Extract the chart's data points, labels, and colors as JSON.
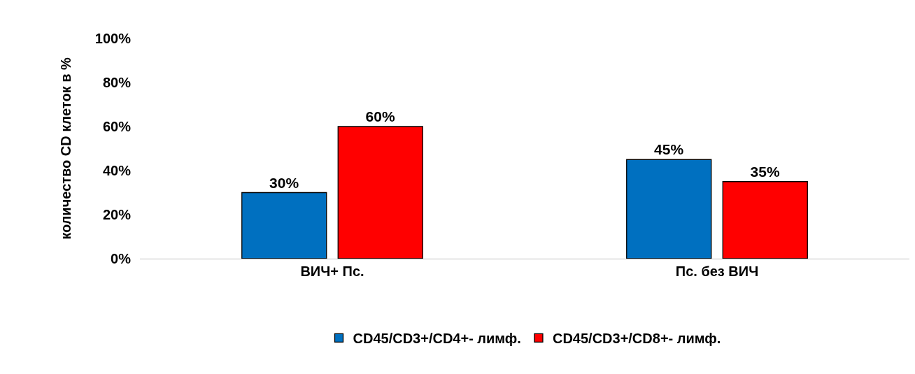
{
  "chart_data": {
    "type": "bar",
    "ylabel": "количество CD клеток в %",
    "categories": [
      "ВИЧ+ Пс.",
      "Пс. без ВИЧ"
    ],
    "series": [
      {
        "name": "CD45/CD3+/CD4+- лимф.",
        "color": "#0070c0",
        "values": [
          30,
          45
        ],
        "value_labels": [
          "30%",
          "45%"
        ]
      },
      {
        "name": "CD45/CD3+/CD8+- лимф.",
        "color": "#ff0000",
        "values": [
          60,
          35
        ],
        "value_labels": [
          "60%",
          "35%"
        ]
      }
    ],
    "ylim": [
      0,
      100
    ],
    "yticks": [
      {
        "value": 0,
        "label": "0%"
      },
      {
        "value": 20,
        "label": "20%"
      },
      {
        "value": 40,
        "label": "40%"
      },
      {
        "value": 60,
        "label": "60%"
      },
      {
        "value": 80,
        "label": "80%"
      },
      {
        "value": 100,
        "label": "100%"
      }
    ],
    "grid": false,
    "legend": "bottom"
  }
}
